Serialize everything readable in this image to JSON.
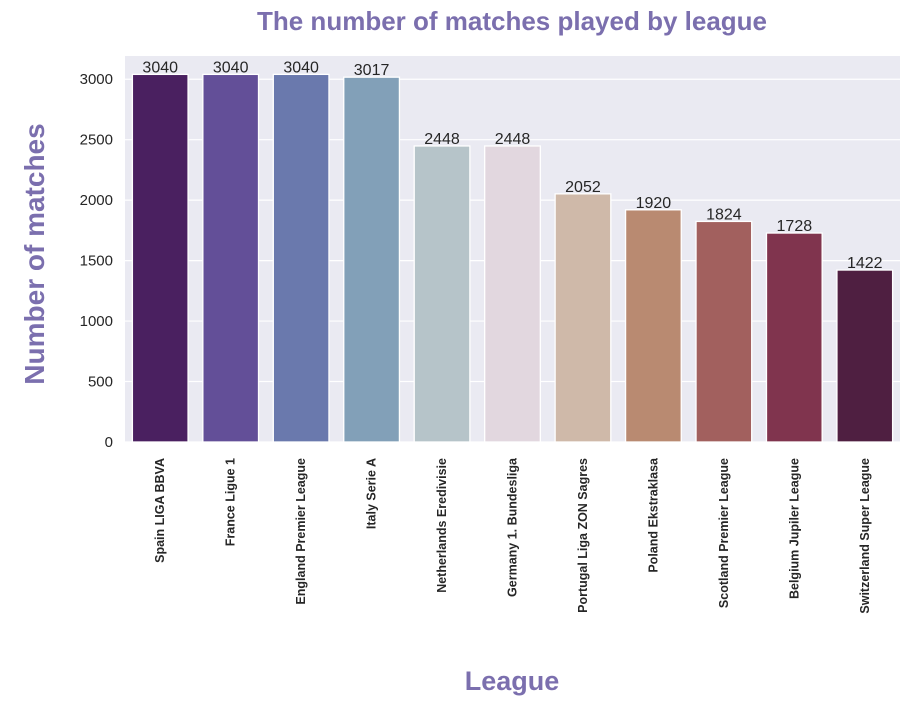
{
  "colors": {
    "title": "#7b6fae",
    "plot_background": "#eaeaf2",
    "grid": "#ffffff",
    "tick_text": "#262626",
    "bars": [
      "#4a2060",
      "#634f98",
      "#6a79ad",
      "#82a0b8",
      "#b6c4c9",
      "#e2d7df",
      "#cfb9a9",
      "#b98a71",
      "#a2605e",
      "#80344e",
      "#4f1f41"
    ]
  },
  "chart_data": {
    "type": "bar",
    "title": "The number of matches played by league",
    "xlabel": "League",
    "ylabel": "Number of matches",
    "categories": [
      "Spain LIGA BBVA",
      "France Ligue 1",
      "England Premier League",
      "Italy Serie A",
      "Netherlands Eredivisie",
      "Germany 1. Bundesliga",
      "Portugal Liga ZON Sagres",
      "Poland Ekstraklasa",
      "Scotland Premier League",
      "Belgium Jupiler League",
      "Switzerland Super League"
    ],
    "values": [
      3040,
      3040,
      3040,
      3017,
      2448,
      2448,
      2052,
      1920,
      1824,
      1728,
      1422
    ],
    "data_labels": [
      "3040",
      "3040",
      "3040",
      "3017",
      "2448",
      "2448",
      "2052",
      "1920",
      "1824",
      "1728",
      "1422"
    ],
    "yticks": [
      0,
      500,
      1000,
      1500,
      2000,
      2500,
      3000
    ],
    "ylim": [
      0,
      3192
    ],
    "grid": true,
    "legend": "none"
  }
}
